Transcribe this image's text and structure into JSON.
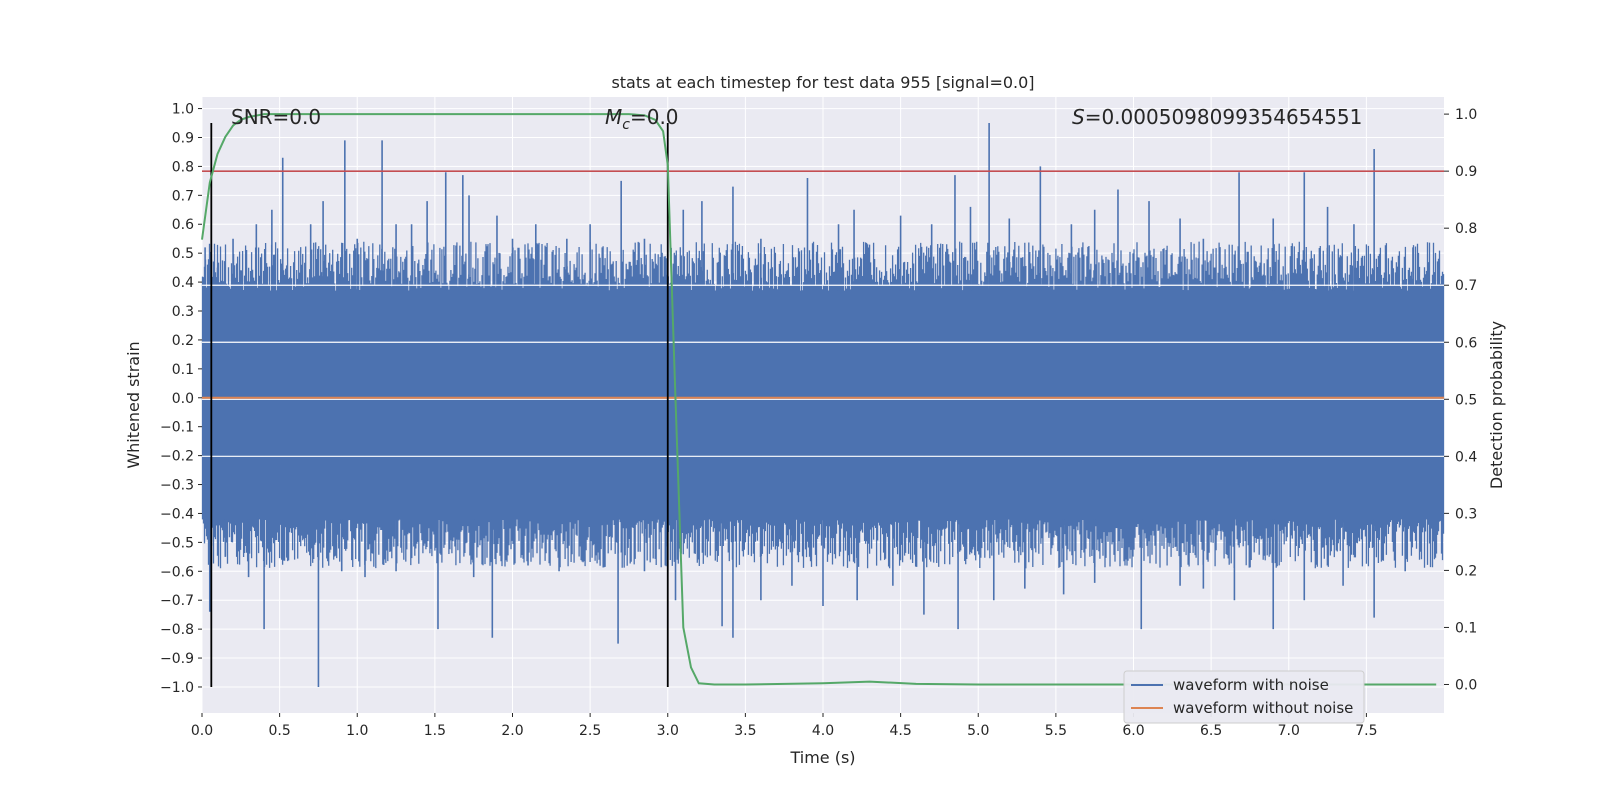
{
  "chart_data": {
    "type": "line",
    "title": "stats at each timestep for test data 955 [signal=0.0]",
    "xlabel": "Time (s)",
    "ylabel_left": "Whitened strain",
    "ylabel_right": "Detection probability",
    "xlim": [
      0.0,
      8.0
    ],
    "ylim_left": [
      -1.09,
      1.04
    ],
    "ylim_right": [
      -0.05,
      1.03
    ],
    "x_ticks": [
      0.0,
      0.5,
      1.0,
      1.5,
      2.0,
      2.5,
      3.0,
      3.5,
      4.0,
      4.5,
      5.0,
      5.5,
      6.0,
      6.5,
      7.0,
      7.5
    ],
    "x_tick_labels": [
      "0.0",
      "0.5",
      "1.0",
      "1.5",
      "2.0",
      "2.5",
      "3.0",
      "3.5",
      "4.0",
      "4.5",
      "5.0",
      "5.5",
      "6.0",
      "6.5",
      "7.0",
      "7.5"
    ],
    "left_ticks": [
      1.0,
      0.9,
      0.8,
      0.7,
      0.6,
      0.5,
      0.4,
      0.3,
      0.2,
      0.1,
      0.0,
      -0.1,
      -0.2,
      -0.3,
      -0.4,
      -0.5,
      -0.6,
      -0.7,
      -0.8,
      -0.9,
      -1.0
    ],
    "left_tick_labels": [
      "1.0",
      "0.9",
      "0.8",
      "0.7",
      "0.6",
      "0.5",
      "0.4",
      "0.3",
      "0.2",
      "0.1",
      "0.0",
      "−0.1",
      "−0.2",
      "−0.3",
      "−0.4",
      "−0.5",
      "−0.6",
      "−0.7",
      "−0.8",
      "−0.9",
      "−1.0"
    ],
    "right_ticks": [
      1.0,
      0.9,
      0.8,
      0.7,
      0.6,
      0.5,
      0.4,
      0.3,
      0.2,
      0.1,
      0.0
    ],
    "right_tick_labels": [
      "1.0",
      "0.9",
      "0.8",
      "0.7",
      "0.6",
      "0.5",
      "0.4",
      "0.3",
      "0.2",
      "0.1",
      "0.0"
    ],
    "annotations": {
      "snr": "SNR=0.0",
      "mc_symbol": "M",
      "mc_sub": "c",
      "mc_value": "=0.0",
      "s_symbol": "S",
      "s_value": "=0.0005098099354654551"
    },
    "vertical_markers": [
      0.06,
      3.0
    ],
    "vertical_marker_range": [
      -1.0,
      0.95
    ],
    "threshold_right": 0.9,
    "white_hlines_right": [
      0.7,
      0.6,
      0.5,
      0.4
    ],
    "series": [
      {
        "name": "waveform with noise",
        "color": "#4c72b0",
        "axis": "left",
        "kind": "noise",
        "band": [
          -0.42,
          0.37
        ],
        "peaks": [
          [
            0.02,
            0.52
          ],
          [
            0.05,
            0.48
          ],
          [
            0.1,
            0.45
          ],
          [
            0.2,
            0.55
          ],
          [
            0.35,
            0.6
          ],
          [
            0.45,
            0.65
          ],
          [
            0.52,
            0.83
          ],
          [
            0.7,
            0.6
          ],
          [
            0.78,
            0.68
          ],
          [
            0.92,
            0.89
          ],
          [
            1.0,
            0.55
          ],
          [
            1.16,
            0.89
          ],
          [
            1.25,
            0.6
          ],
          [
            1.35,
            0.6
          ],
          [
            1.45,
            0.68
          ],
          [
            1.57,
            0.78
          ],
          [
            1.68,
            0.77
          ],
          [
            1.72,
            0.7
          ],
          [
            1.9,
            0.63
          ],
          [
            2.0,
            0.55
          ],
          [
            2.15,
            0.6
          ],
          [
            2.35,
            0.55
          ],
          [
            2.5,
            0.6
          ],
          [
            2.7,
            0.75
          ],
          [
            2.85,
            0.55
          ],
          [
            3.1,
            0.65
          ],
          [
            3.22,
            0.68
          ],
          [
            3.42,
            0.73
          ],
          [
            3.6,
            0.55
          ],
          [
            3.9,
            0.76
          ],
          [
            4.1,
            0.6
          ],
          [
            4.2,
            0.65
          ],
          [
            4.5,
            0.63
          ],
          [
            4.7,
            0.6
          ],
          [
            4.85,
            0.77
          ],
          [
            4.95,
            0.66
          ],
          [
            5.07,
            0.95
          ],
          [
            5.2,
            0.62
          ],
          [
            5.4,
            0.8
          ],
          [
            5.6,
            0.6
          ],
          [
            5.75,
            0.65
          ],
          [
            5.9,
            0.72
          ],
          [
            6.1,
            0.68
          ],
          [
            6.3,
            0.62
          ],
          [
            6.45,
            0.55
          ],
          [
            6.68,
            0.78
          ],
          [
            6.9,
            0.62
          ],
          [
            7.1,
            0.78
          ],
          [
            7.25,
            0.66
          ],
          [
            7.42,
            0.6
          ],
          [
            7.55,
            0.86
          ],
          [
            7.8,
            0.52
          ]
        ],
        "troughs": [
          [
            0.05,
            -0.74
          ],
          [
            0.15,
            -0.55
          ],
          [
            0.3,
            -0.62
          ],
          [
            0.4,
            -0.8
          ],
          [
            0.75,
            -1.0
          ],
          [
            0.9,
            -0.6
          ],
          [
            1.05,
            -0.62
          ],
          [
            1.25,
            -0.6
          ],
          [
            1.52,
            -0.8
          ],
          [
            1.75,
            -0.62
          ],
          [
            1.87,
            -0.83
          ],
          [
            2.1,
            -0.58
          ],
          [
            2.3,
            -0.6
          ],
          [
            2.68,
            -0.85
          ],
          [
            2.85,
            -0.6
          ],
          [
            3.05,
            -0.7
          ],
          [
            3.35,
            -0.79
          ],
          [
            3.42,
            -0.83
          ],
          [
            3.6,
            -0.7
          ],
          [
            3.8,
            -0.65
          ],
          [
            4.0,
            -0.72
          ],
          [
            4.22,
            -0.7
          ],
          [
            4.45,
            -0.65
          ],
          [
            4.65,
            -0.75
          ],
          [
            4.87,
            -0.8
          ],
          [
            5.1,
            -0.7
          ],
          [
            5.3,
            -0.66
          ],
          [
            5.55,
            -0.68
          ],
          [
            5.75,
            -0.64
          ],
          [
            6.05,
            -0.8
          ],
          [
            6.3,
            -0.65
          ],
          [
            6.45,
            -0.66
          ],
          [
            6.65,
            -0.7
          ],
          [
            6.9,
            -0.8
          ],
          [
            7.1,
            -0.7
          ],
          [
            7.35,
            -0.65
          ],
          [
            7.55,
            -0.76
          ],
          [
            7.75,
            -0.6
          ]
        ]
      },
      {
        "name": "waveform without noise",
        "color": "#dd8452",
        "axis": "left",
        "x": [
          0.0,
          8.0
        ],
        "y": [
          0.0,
          0.0
        ]
      },
      {
        "name": "detection probability",
        "color": "#55a868",
        "axis": "right",
        "x": [
          0.0,
          0.05,
          0.1,
          0.15,
          0.2,
          0.25,
          0.3,
          0.4,
          0.5,
          1.0,
          1.5,
          2.0,
          2.5,
          2.75,
          2.85,
          2.92,
          2.97,
          3.0,
          3.05,
          3.1,
          3.15,
          3.2,
          3.3,
          3.5,
          4.0,
          4.3,
          4.6,
          5.0,
          6.0,
          7.0,
          7.95
        ],
        "y": [
          0.78,
          0.88,
          0.93,
          0.96,
          0.98,
          0.99,
          0.995,
          1.0,
          1.0,
          1.0,
          1.0,
          1.0,
          1.0,
          1.0,
          0.998,
          0.99,
          0.97,
          0.91,
          0.5,
          0.1,
          0.03,
          0.002,
          0.0,
          0.0,
          0.002,
          0.005,
          0.001,
          0.0,
          0.0,
          0.0,
          0.0
        ]
      },
      {
        "name": "threshold",
        "color": "#c44e52",
        "axis": "right",
        "x": [
          0.0,
          8.0
        ],
        "y": [
          0.9,
          0.9
        ]
      }
    ],
    "legend": {
      "placement": "bottom-right",
      "entries": [
        {
          "label": "waveform with noise",
          "color": "#4c72b0"
        },
        {
          "label": "waveform without noise",
          "color": "#dd8452"
        }
      ]
    },
    "grid": true
  }
}
